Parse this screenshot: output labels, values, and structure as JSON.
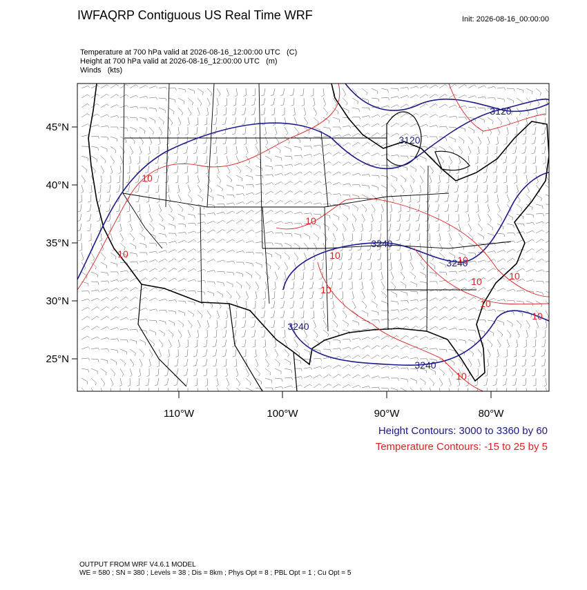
{
  "header": {
    "title": "IWFAQRP Contiguous US Real Time WRF",
    "init": "Init: 2026-08-16_00:00:00"
  },
  "fields": [
    "Temperature at 700 hPa valid at 2026-08-16_12:00:00 UTC   (C)",
    "Height at 700 hPa valid at 2026-08-16_12:00:00 UTC   (m)",
    "Winds   (kts)"
  ],
  "map": {
    "lat_labels": [
      "45°N",
      "40°N",
      "35°N",
      "30°N",
      "25°N"
    ],
    "lon_labels": [
      "110°W",
      "100°W",
      "90°W",
      "80°W"
    ],
    "height_labels": [
      "3120",
      "3120",
      "3240",
      "3240",
      "3240",
      "3240"
    ],
    "temperature_labels": [
      "10",
      "10",
      "10",
      "10",
      "10",
      "10",
      "10",
      "10",
      "10",
      "10",
      "10"
    ]
  },
  "legend": {
    "height": "Height Contours: 3000 to 3360 by 60",
    "temperature": "Temperature Contours: -15 to 25 by 5"
  },
  "footer": [
    "OUTPUT FROM WRF V4.6.1 MODEL",
    "WE = 580 ; SN = 380 ; Levels = 38 ; Dis = 8km ; Phys Opt = 8 ; PBL Opt = 1 ; Cu Opt = 5"
  ]
}
